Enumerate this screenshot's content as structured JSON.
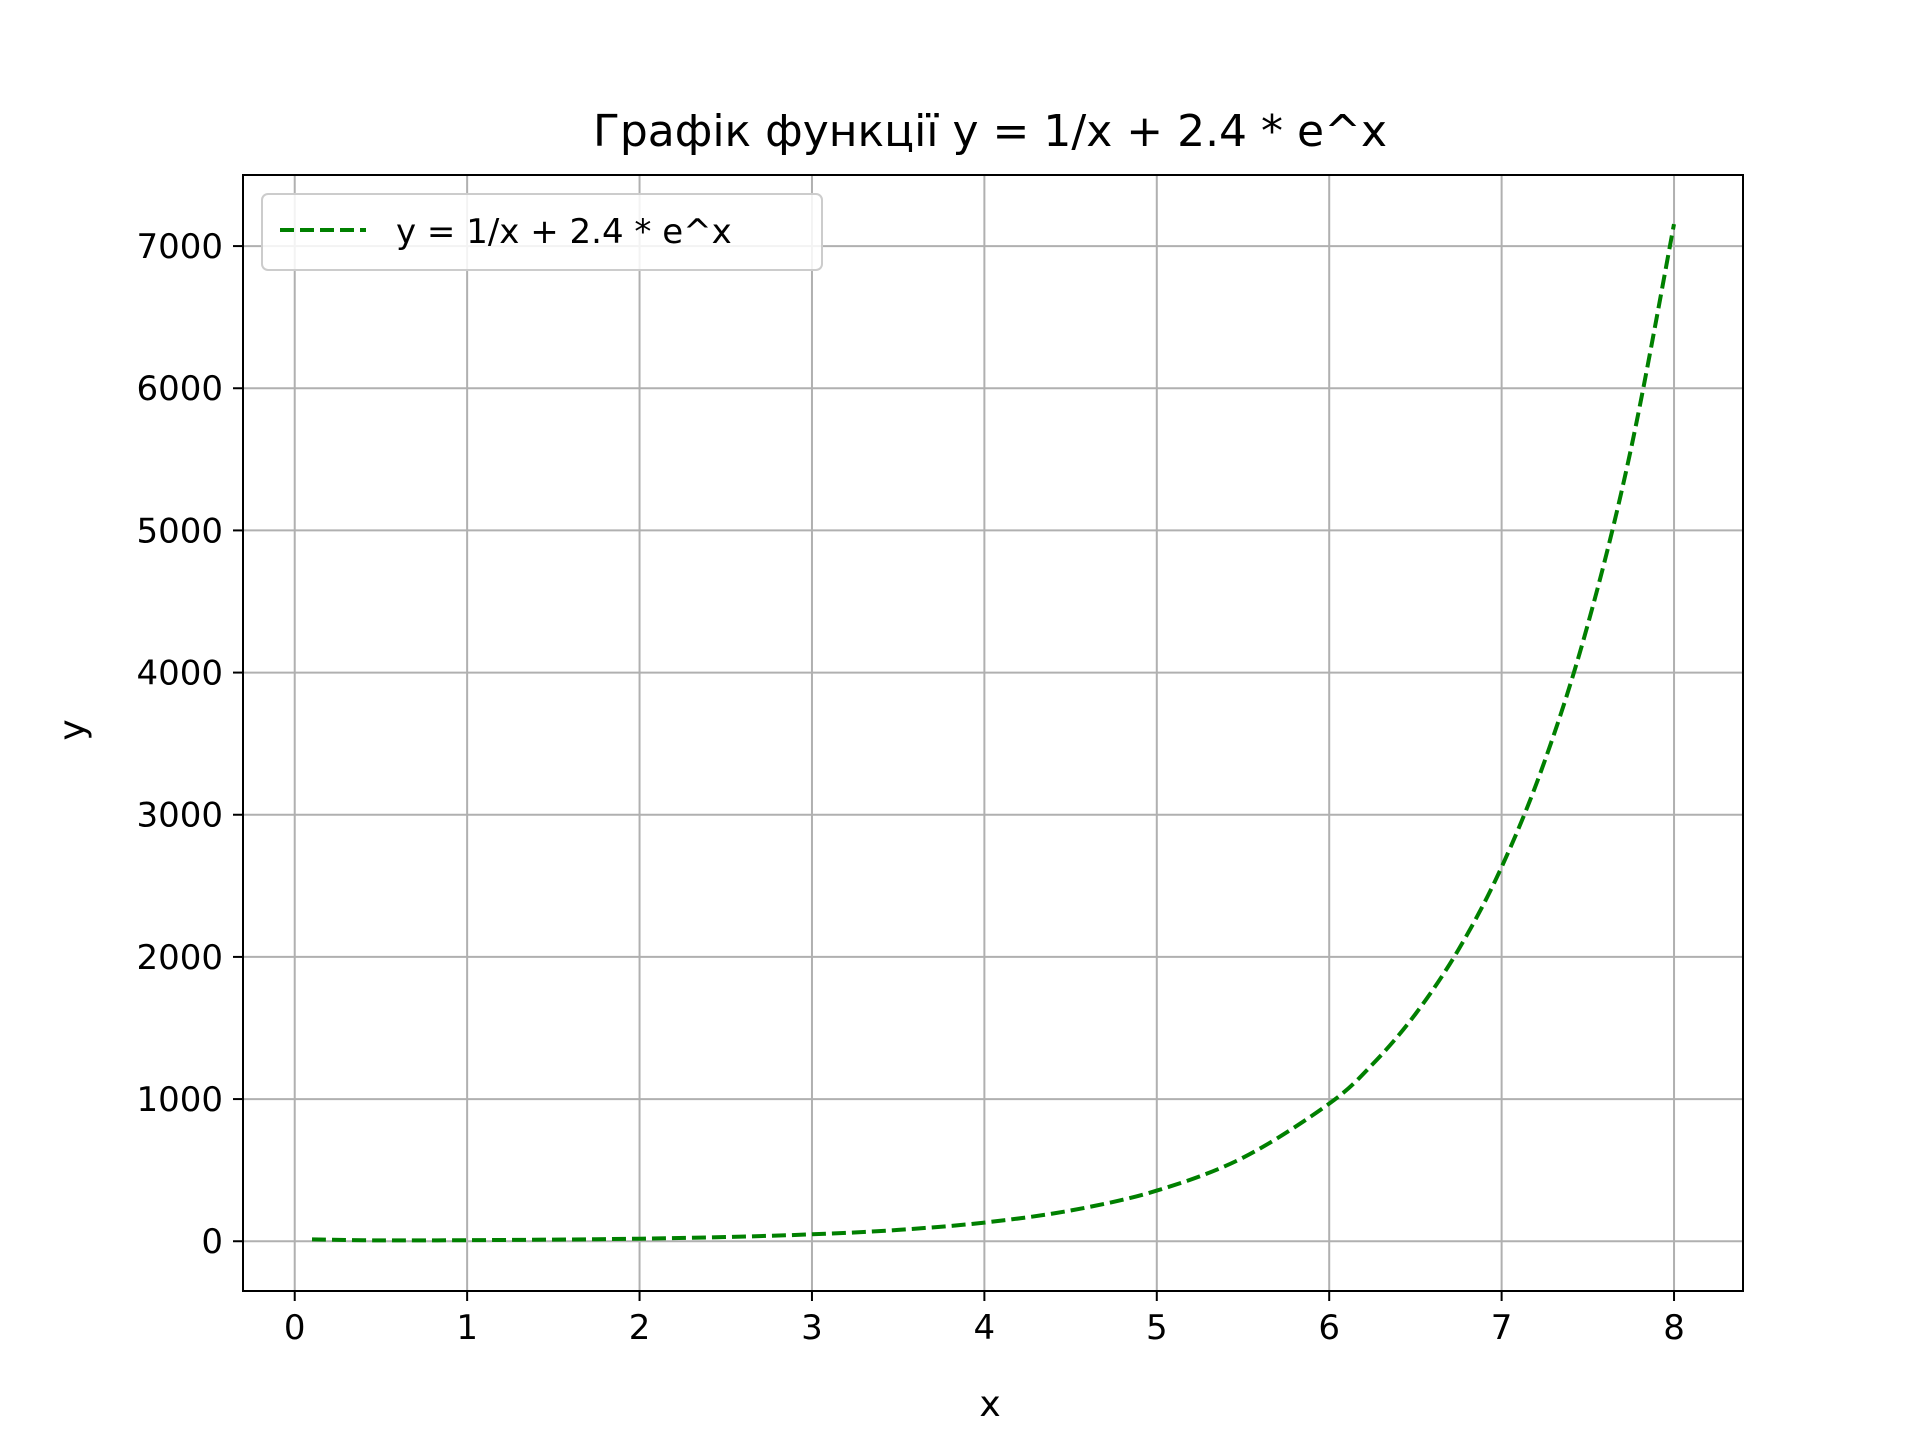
{
  "chart_data": {
    "type": "line",
    "title": "Графік функції y = 1/x + 2.4 * e^x",
    "xlabel": "x",
    "ylabel": "y",
    "xlim": [
      -0.3,
      8.4
    ],
    "ylim": [
      -350,
      7500
    ],
    "xticks": [
      0,
      1,
      2,
      3,
      4,
      5,
      6,
      7,
      8
    ],
    "yticks": [
      0,
      1000,
      2000,
      3000,
      4000,
      5000,
      6000,
      7000
    ],
    "xtick_labels": [
      "0",
      "1",
      "2",
      "3",
      "4",
      "5",
      "6",
      "7",
      "8"
    ],
    "ytick_labels": [
      "0",
      "1000",
      "2000",
      "3000",
      "4000",
      "5000",
      "6000",
      "7000"
    ],
    "grid": true,
    "legend_position": "top-left",
    "series": [
      {
        "name": "y = 1/x + 2.4 * e^x",
        "color": "#008000",
        "line_style": "dashed",
        "x": [
          0.1,
          0.5,
          1.0,
          1.5,
          2.0,
          2.5,
          3.0,
          3.5,
          4.0,
          4.5,
          5.0,
          5.5,
          6.0,
          6.25,
          6.5,
          6.75,
          7.0,
          7.25,
          7.5,
          7.75,
          8.0
        ],
        "y": [
          12.65,
          5.96,
          7.52,
          11.42,
          18.23,
          29.64,
          48.54,
          79.75,
          131.29,
          216.23,
          356.39,
          587.39,
          968.39,
          1243.4,
          1598.0,
          2051.3,
          2632.0,
          3377.9,
          4338.4,
          5570.8,
          7154.5
        ]
      }
    ]
  }
}
